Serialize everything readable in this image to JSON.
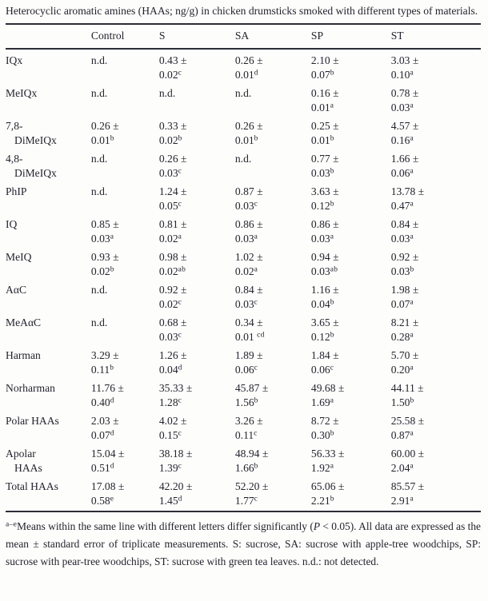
{
  "caption": "Heterocyclic aromatic amines (HAAs; ng/g) in chicken drumsticks smoked with different types of materials.",
  "table": {
    "nd_label": "n.d.",
    "columns": [
      "",
      "Control",
      "S",
      "SA",
      "SP",
      "ST"
    ],
    "rows": [
      {
        "label": [
          "IQx"
        ],
        "cells": [
          {
            "nd": true
          },
          {
            "m": "0.43 ±",
            "e": "0.02",
            "s": "c"
          },
          {
            "m": "0.26 ±",
            "e": "0.01",
            "s": "d"
          },
          {
            "m": "2.10 ±",
            "e": "0.07",
            "s": "b"
          },
          {
            "m": "3.03 ±",
            "e": "0.10",
            "s": "a"
          }
        ]
      },
      {
        "label": [
          "MeIQx"
        ],
        "cells": [
          {
            "nd": true
          },
          {
            "nd": true
          },
          {
            "nd": true
          },
          {
            "m": "0.16 ±",
            "e": "0.01",
            "s": "a"
          },
          {
            "m": "0.78 ±",
            "e": "0.03",
            "s": "a"
          }
        ]
      },
      {
        "label": [
          "7,8-",
          "DiMeIQx"
        ],
        "cells": [
          {
            "m": "0.26 ±",
            "e": "0.01",
            "s": "b"
          },
          {
            "m": "0.33 ±",
            "e": "0.02",
            "s": "b"
          },
          {
            "m": "0.26 ±",
            "e": "0.01",
            "s": "b"
          },
          {
            "m": "0.25 ±",
            "e": "0.01",
            "s": "b"
          },
          {
            "m": "4.57 ±",
            "e": "0.16",
            "s": "a"
          }
        ]
      },
      {
        "label": [
          "4,8-",
          "DiMeIQx"
        ],
        "cells": [
          {
            "nd": true
          },
          {
            "m": "0.26 ±",
            "e": "0.03",
            "s": "c"
          },
          {
            "nd": true
          },
          {
            "m": "0.77 ±",
            "e": "0.03",
            "s": "b"
          },
          {
            "m": "1.66 ±",
            "e": "0.06",
            "s": "a"
          }
        ]
      },
      {
        "label": [
          "PhIP"
        ],
        "cells": [
          {
            "nd": true
          },
          {
            "m": "1.24 ±",
            "e": "0.05",
            "s": "c"
          },
          {
            "m": "0.87 ±",
            "e": "0.03",
            "s": "c"
          },
          {
            "m": "3.63 ±",
            "e": "0.12",
            "s": "b"
          },
          {
            "m": "13.78 ±",
            "e": "0.47",
            "s": "a"
          }
        ]
      },
      {
        "label": [
          "IQ"
        ],
        "cells": [
          {
            "m": "0.85 ±",
            "e": "0.03",
            "s": "a"
          },
          {
            "m": "0.81 ±",
            "e": "0.02",
            "s": "a"
          },
          {
            "m": "0.86 ±",
            "e": "0.03",
            "s": "a"
          },
          {
            "m": "0.86 ±",
            "e": "0.03",
            "s": "a"
          },
          {
            "m": "0.84 ±",
            "e": "0.03",
            "s": "a"
          }
        ]
      },
      {
        "label": [
          "MeIQ"
        ],
        "cells": [
          {
            "m": "0.93 ±",
            "e": "0.02",
            "s": "b"
          },
          {
            "m": "0.98 ±",
            "e": "0.02",
            "s": "ab"
          },
          {
            "m": "1.02 ±",
            "e": "0.02",
            "s": "a"
          },
          {
            "m": "0.94 ±",
            "e": "0.03",
            "s": "ab"
          },
          {
            "m": "0.92 ±",
            "e": "0.03",
            "s": "b"
          }
        ]
      },
      {
        "label": [
          "AαC"
        ],
        "cells": [
          {
            "nd": true
          },
          {
            "m": "0.92 ±",
            "e": "0.02",
            "s": "c"
          },
          {
            "m": "0.84 ±",
            "e": "0.03",
            "s": "c"
          },
          {
            "m": "1.16 ±",
            "e": "0.04",
            "s": "b"
          },
          {
            "m": "1.98 ±",
            "e": "0.07",
            "s": "a"
          }
        ]
      },
      {
        "label": [
          "MeAαC"
        ],
        "cells": [
          {
            "nd": true
          },
          {
            "m": "0.68 ±",
            "e": "0.03",
            "s": "c"
          },
          {
            "m": "0.34 ±",
            "e": "0.01 ",
            "s": "cd"
          },
          {
            "m": "3.65 ±",
            "e": "0.12",
            "s": "b"
          },
          {
            "m": "8.21 ±",
            "e": "0.28",
            "s": "a"
          }
        ]
      },
      {
        "label": [
          "Harman"
        ],
        "cells": [
          {
            "m": "3.29 ±",
            "e": "0.11",
            "s": "b"
          },
          {
            "m": "1.26 ±",
            "e": "0.04",
            "s": "d"
          },
          {
            "m": "1.89 ±",
            "e": "0.06",
            "s": "c"
          },
          {
            "m": "1.84 ±",
            "e": "0.06",
            "s": "c"
          },
          {
            "m": "5.70 ±",
            "e": "0.20",
            "s": "a"
          }
        ]
      },
      {
        "label": [
          "Norharman"
        ],
        "cells": [
          {
            "m": "11.76 ±",
            "e": "0.40",
            "s": "d"
          },
          {
            "m": "35.33 ±",
            "e": "1.28",
            "s": "c"
          },
          {
            "m": "45.87 ±",
            "e": "1.56",
            "s": "b"
          },
          {
            "m": "49.68 ±",
            "e": "1.69",
            "s": "a"
          },
          {
            "m": "44.11 ±",
            "e": "1.50",
            "s": "b"
          }
        ]
      },
      {
        "label": [
          "Polar HAAs"
        ],
        "cells": [
          {
            "m": "2.03 ±",
            "e": "0.07",
            "s": "d"
          },
          {
            "m": "4.02 ±",
            "e": "0.15",
            "s": "c"
          },
          {
            "m": "3.26 ±",
            "e": "0.11",
            "s": "c"
          },
          {
            "m": "8.72 ±",
            "e": "0.30",
            "s": "b"
          },
          {
            "m": "25.58 ±",
            "e": "0.87",
            "s": "a"
          }
        ]
      },
      {
        "label": [
          "Apolar",
          "HAAs"
        ],
        "cells": [
          {
            "m": "15.04 ±",
            "e": "0.51",
            "s": "d"
          },
          {
            "m": "38.18 ±",
            "e": "1.39",
            "s": "c"
          },
          {
            "m": "48.94 ±",
            "e": "1.66",
            "s": "b"
          },
          {
            "m": "56.33 ±",
            "e": "1.92",
            "s": "a"
          },
          {
            "m": "60.00 ±",
            "e": "2.04",
            "s": "a"
          }
        ]
      },
      {
        "label": [
          "Total HAAs"
        ],
        "cells": [
          {
            "m": "17.08 ±",
            "e": "0.58",
            "s": "e"
          },
          {
            "m": "42.20 ±",
            "e": "1.45",
            "s": "d"
          },
          {
            "m": "52.20 ±",
            "e": "1.77",
            "s": "c"
          },
          {
            "m": "65.06 ±",
            "e": "2.21",
            "s": "b"
          },
          {
            "m": "85.57 ±",
            "e": "2.91",
            "s": "a"
          }
        ]
      }
    ]
  },
  "footnote": {
    "sup_prefix": "a–e",
    "text1": "Means within the same line with different letters differ significantly (",
    "p_italic": "P",
    "text2": " < 0.05). All data are expressed as the mean ± standard error of triplicate measurements. S: sucrose, SA: sucrose with apple-tree woodchips, SP: sucrose with pear-tree woodchips, ST: sucrose with green tea leaves. n.d.: not detected."
  }
}
